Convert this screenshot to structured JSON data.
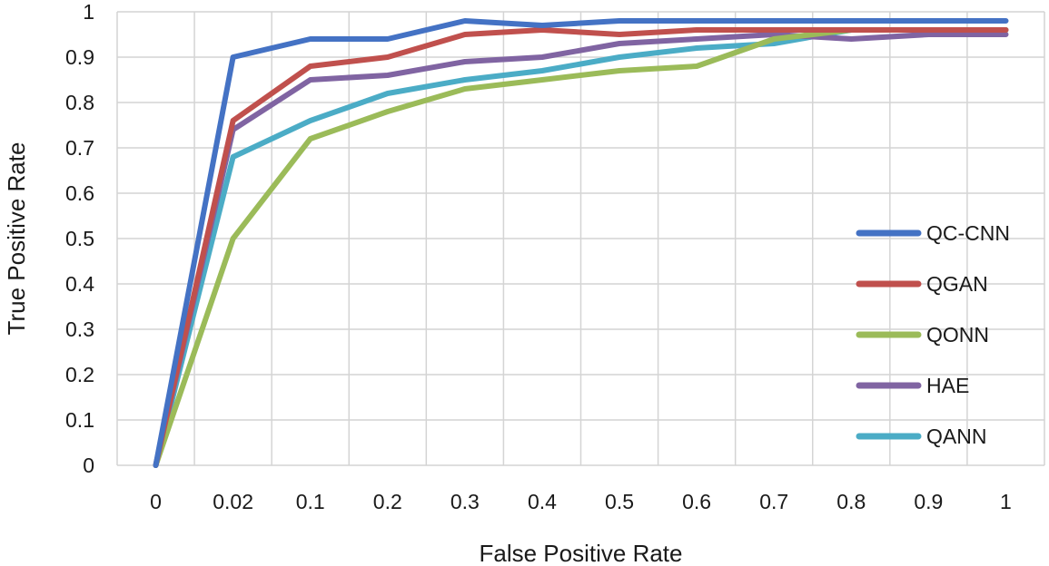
{
  "chart_data": {
    "type": "line",
    "title": "",
    "xlabel": "False Positive Rate",
    "ylabel": "True Positive Rate",
    "categories": [
      "0",
      "0.02",
      "0.1",
      "0.2",
      "0.3",
      "0.4",
      "0.5",
      "0.6",
      "0.7",
      "0.8",
      "0.9",
      "1"
    ],
    "y_ticks": [
      "0",
      "0.1",
      "0.2",
      "0.3",
      "0.4",
      "0.5",
      "0.6",
      "0.7",
      "0.8",
      "0.9",
      "1"
    ],
    "ylim": [
      0,
      1
    ],
    "grid": true,
    "legend_position": "right",
    "series": [
      {
        "name": "QC-CNN",
        "color": "#4472c4",
        "values": [
          0,
          0.9,
          0.94,
          0.94,
          0.98,
          0.97,
          0.98,
          0.98,
          0.98,
          0.98,
          0.98,
          0.98
        ]
      },
      {
        "name": "QGAN",
        "color": "#c0504d",
        "values": [
          0,
          0.76,
          0.88,
          0.9,
          0.95,
          0.96,
          0.95,
          0.96,
          0.96,
          0.96,
          0.96,
          0.96
        ]
      },
      {
        "name": "QONN",
        "color": "#9bbb59",
        "values": [
          0,
          0.5,
          0.72,
          0.78,
          0.83,
          0.85,
          0.87,
          0.88,
          0.94,
          0.96,
          0.96,
          0.96
        ]
      },
      {
        "name": "HAE",
        "color": "#8064a2",
        "values": [
          0,
          0.74,
          0.85,
          0.86,
          0.89,
          0.9,
          0.93,
          0.94,
          0.95,
          0.94,
          0.95,
          0.95
        ]
      },
      {
        "name": "QANN",
        "color": "#4bacc6",
        "values": [
          0,
          0.68,
          0.76,
          0.82,
          0.85,
          0.87,
          0.9,
          0.92,
          0.93,
          0.96,
          0.96,
          0.96
        ]
      }
    ]
  }
}
